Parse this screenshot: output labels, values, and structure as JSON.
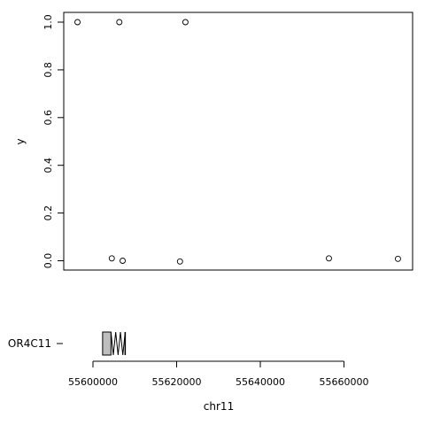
{
  "chart_data": [
    {
      "type": "scatter",
      "xlabel": "",
      "ylabel": "y",
      "ylim": [
        0,
        1
      ],
      "y_ticks": [
        "0.0",
        "0.2",
        "0.4",
        "0.6",
        "0.8",
        "1.0"
      ],
      "x_ticks": [],
      "grid": false,
      "points": [
        {
          "x": 55596300,
          "y": 1.0
        },
        {
          "x": 55606300,
          "y": 1.0
        },
        {
          "x": 55622100,
          "y": 1.0
        },
        {
          "x": 55604500,
          "y": 0.01
        },
        {
          "x": 55607100,
          "y": 0.0
        },
        {
          "x": 55620800,
          "y": -0.003
        },
        {
          "x": 55656400,
          "y": 0.01
        },
        {
          "x": 55672900,
          "y": 0.008
        }
      ]
    },
    {
      "type": "gene_track",
      "xlabel": "chr11",
      "x_ticks": [
        "55600000",
        "55620000",
        "55640000",
        "55660000"
      ],
      "gene": "OR4C11",
      "exon_region": [
        55602300,
        55604300
      ],
      "intron_zigzag": [
        55604300,
        55607700
      ]
    }
  ]
}
